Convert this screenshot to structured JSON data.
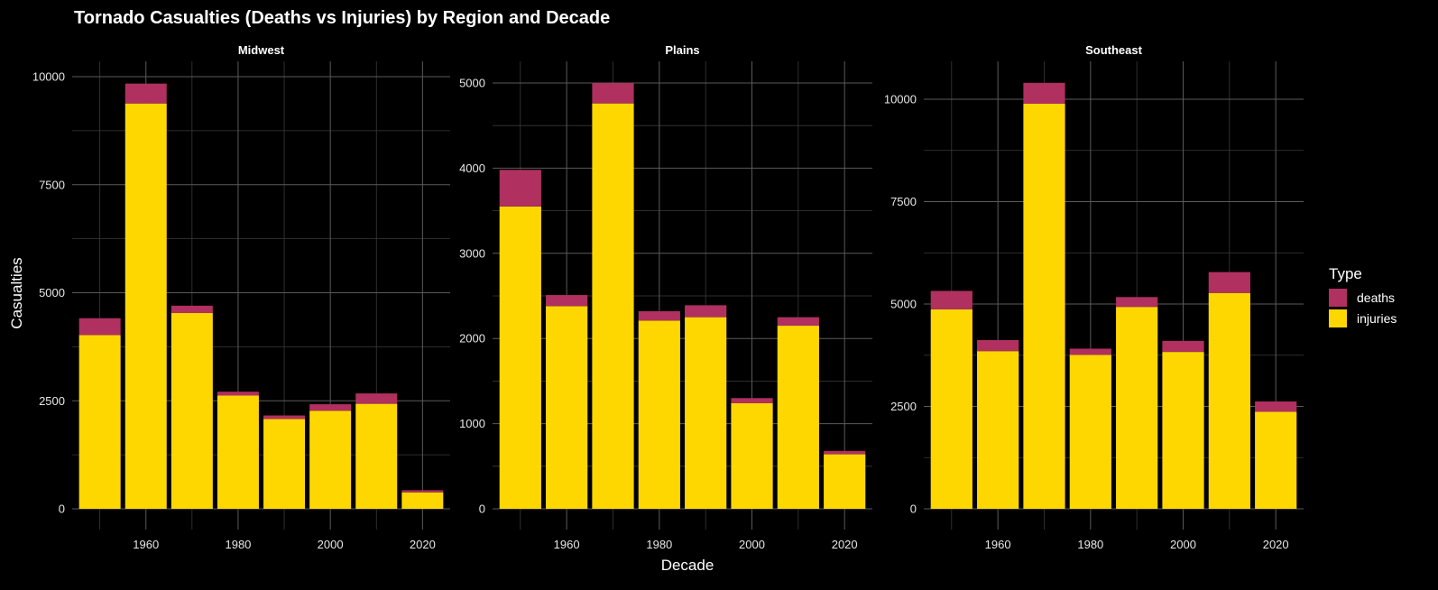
{
  "chart_data": {
    "type": "bar",
    "stacked": true,
    "title": "Tornado Casualties (Deaths vs Injuries) by Region and Decade",
    "xlabel": "Decade",
    "ylabel": "Casualties",
    "x": [
      1950,
      1960,
      1970,
      1980,
      1990,
      2000,
      2010,
      2020
    ],
    "x_ticks": [
      1960,
      1980,
      2000,
      2020
    ],
    "xlim": [
      1944,
      2026
    ],
    "grid": true,
    "legend": {
      "title": "Type",
      "position": "right",
      "entries": [
        "deaths",
        "injuries"
      ]
    },
    "colors": {
      "deaths": "#b03060",
      "injuries": "#ffd700",
      "background": "#000000"
    },
    "facets": [
      {
        "name": "Midwest",
        "ylim": [
          0,
          10400
        ],
        "y_ticks": [
          0,
          2500,
          5000,
          7500,
          10000
        ],
        "series": [
          {
            "name": "injuries",
            "values": [
              4020,
              9380,
              4530,
              2620,
              2080,
              2270,
              2430,
              380
            ]
          },
          {
            "name": "deaths",
            "values": [
              390,
              460,
              170,
              90,
              80,
              150,
              240,
              50
            ]
          }
        ]
      },
      {
        "name": "Plains",
        "ylim": [
          0,
          5200
        ],
        "y_ticks": [
          0,
          1000,
          2000,
          3000,
          4000,
          5000
        ],
        "series": [
          {
            "name": "injuries",
            "values": [
              3550,
              2380,
              4760,
              2210,
              2250,
              1240,
              2150,
              640
            ]
          },
          {
            "name": "deaths",
            "values": [
              430,
              130,
              240,
              110,
              140,
              60,
              100,
              40
            ]
          }
        ]
      },
      {
        "name": "Southeast",
        "ylim": [
          0,
          10800
        ],
        "y_ticks": [
          0,
          2500,
          5000,
          7500,
          10000
        ],
        "series": [
          {
            "name": "injuries",
            "values": [
              4870,
              3850,
              9890,
              3760,
              4930,
              3830,
              5270,
              2370
            ]
          },
          {
            "name": "deaths",
            "values": [
              450,
              270,
              510,
              150,
              240,
              270,
              510,
              250
            ]
          }
        ]
      }
    ]
  }
}
